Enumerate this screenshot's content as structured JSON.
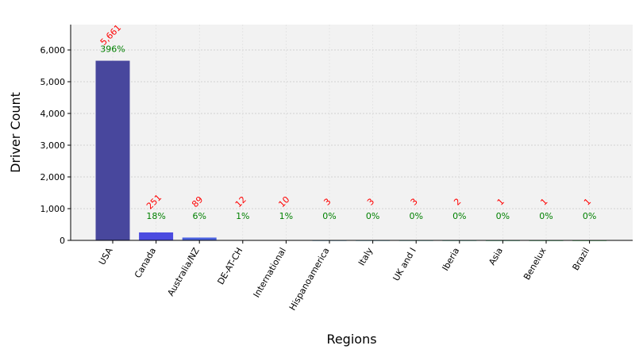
{
  "chart_data": {
    "type": "bar",
    "title": "",
    "xlabel": "Regions",
    "ylabel": "Driver Count",
    "ylim": [
      0,
      6800
    ],
    "yticks": [
      0,
      1000,
      2000,
      3000,
      4000,
      5000,
      6000
    ],
    "ytick_labels": [
      "0",
      "1,000",
      "2,000",
      "3,000",
      "4,000",
      "5,000",
      "6,000"
    ],
    "grid": true,
    "categories": [
      "USA",
      "Canada",
      "Australia/NZ",
      "DE-AT-CH",
      "International",
      "Hispanoamerica",
      "Italy",
      "UK and I",
      "Iberia",
      "Asia",
      "Benelux",
      "Brazil"
    ],
    "values": [
      5661,
      251,
      89,
      12,
      10,
      3,
      3,
      3,
      2,
      1,
      1,
      1
    ],
    "count_labels": [
      "5,661",
      "251",
      "89",
      "12",
      "10",
      "3",
      "3",
      "3",
      "2",
      "1",
      "1",
      "1"
    ],
    "percent_labels": [
      "396%",
      "18%",
      "6%",
      "1%",
      "1%",
      "0%",
      "0%",
      "0%",
      "0%",
      "0%",
      "0%",
      "0%"
    ],
    "bar_colors": [
      "#48479d",
      "#4b4be0",
      "#4b63e0",
      "#4b7ae0",
      "#4b92e0",
      "#4baae0",
      "#4bc2e0",
      "#4bd3c9",
      "#4bd3b0",
      "#4bd398",
      "#4bd380",
      "#4bd367"
    ],
    "colors": {
      "background": "#f2f2f2",
      "count_label": "#ff0000",
      "percent_label": "#008000"
    }
  }
}
